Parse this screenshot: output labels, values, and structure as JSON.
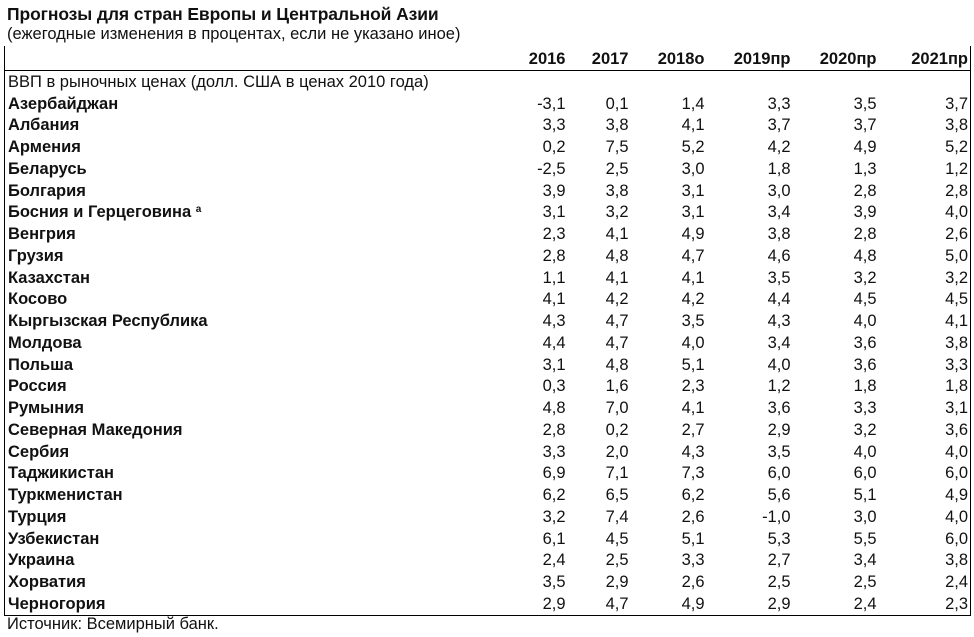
{
  "title": "Прогнозы для стран Европы и Центральной Азии",
  "subtitle": "(ежегодные изменения в процентах, если не указано иное)",
  "columns": [
    "2016",
    "2017",
    "2018о",
    "2019пр",
    "2020пр",
    "2021пр"
  ],
  "section_label": "ВВП в рыночных ценах (долл. США в ценах 2010 года)",
  "rows": [
    {
      "name": "Азербайджан",
      "sup": "",
      "values": [
        "-3,1",
        "0,1",
        "1,4",
        "3,3",
        "3,5",
        "3,7"
      ]
    },
    {
      "name": "Албания",
      "sup": "",
      "values": [
        "3,3",
        "3,8",
        "4,1",
        "3,7",
        "3,7",
        "3,8"
      ]
    },
    {
      "name": "Армения",
      "sup": "",
      "values": [
        "0,2",
        "7,5",
        "5,2",
        "4,2",
        "4,9",
        "5,2"
      ]
    },
    {
      "name": "Беларусь",
      "sup": "",
      "values": [
        "-2,5",
        "2,5",
        "3,0",
        "1,8",
        "1,3",
        "1,2"
      ]
    },
    {
      "name": "Болгария",
      "sup": "",
      "values": [
        "3,9",
        "3,8",
        "3,1",
        "3,0",
        "2,8",
        "2,8"
      ]
    },
    {
      "name": "Босния и Герцеговина",
      "sup": "а",
      "values": [
        "3,1",
        "3,2",
        "3,1",
        "3,4",
        "3,9",
        "4,0"
      ]
    },
    {
      "name": "Венгрия",
      "sup": "",
      "values": [
        "2,3",
        "4,1",
        "4,9",
        "3,8",
        "2,8",
        "2,6"
      ]
    },
    {
      "name": "Грузия",
      "sup": "",
      "values": [
        "2,8",
        "4,8",
        "4,7",
        "4,6",
        "4,8",
        "5,0"
      ]
    },
    {
      "name": "Казахстан",
      "sup": "",
      "values": [
        "1,1",
        "4,1",
        "4,1",
        "3,5",
        "3,2",
        "3,2"
      ]
    },
    {
      "name": "Косово",
      "sup": "",
      "values": [
        "4,1",
        "4,2",
        "4,2",
        "4,4",
        "4,5",
        "4,5"
      ]
    },
    {
      "name": "Кыргызская Республика",
      "sup": "",
      "values": [
        "4,3",
        "4,7",
        "3,5",
        "4,3",
        "4,0",
        "4,1"
      ]
    },
    {
      "name": "Молдова",
      "sup": "",
      "values": [
        "4,4",
        "4,7",
        "4,0",
        "3,4",
        "3,6",
        "3,8"
      ]
    },
    {
      "name": "Польша",
      "sup": "",
      "values": [
        "3,1",
        "4,8",
        "5,1",
        "4,0",
        "3,6",
        "3,3"
      ]
    },
    {
      "name": "Россия",
      "sup": "",
      "values": [
        "0,3",
        "1,6",
        "2,3",
        "1,2",
        "1,8",
        "1,8"
      ]
    },
    {
      "name": "Румыния",
      "sup": "",
      "values": [
        "4,8",
        "7,0",
        "4,1",
        "3,6",
        "3,3",
        "3,1"
      ]
    },
    {
      "name": "Северная Македония",
      "sup": "",
      "values": [
        "2,8",
        "0,2",
        "2,7",
        "2,9",
        "3,2",
        "3,6"
      ]
    },
    {
      "name": "Сербия",
      "sup": "",
      "values": [
        "3,3",
        "2,0",
        "4,3",
        "3,5",
        "4,0",
        "4,0"
      ]
    },
    {
      "name": "Таджикистан",
      "sup": "",
      "values": [
        "6,9",
        "7,1",
        "7,3",
        "6,0",
        "6,0",
        "6,0"
      ]
    },
    {
      "name": "Туркменистан",
      "sup": "",
      "values": [
        "6,2",
        "6,5",
        "6,2",
        "5,6",
        "5,1",
        "4,9"
      ]
    },
    {
      "name": "Турция",
      "sup": "",
      "values": [
        "3,2",
        "7,4",
        "2,6",
        "-1,0",
        "3,0",
        "4,0"
      ]
    },
    {
      "name": "Узбекистан",
      "sup": "",
      "values": [
        "6,1",
        "4,5",
        "5,1",
        "5,3",
        "5,5",
        "6,0"
      ]
    },
    {
      "name": "Украина",
      "sup": "",
      "values": [
        "2,4",
        "2,5",
        "3,3",
        "2,7",
        "3,4",
        "3,8"
      ]
    },
    {
      "name": "Хорватия",
      "sup": "",
      "values": [
        "3,5",
        "2,9",
        "2,6",
        "2,5",
        "2,5",
        "2,4"
      ]
    },
    {
      "name": "Черногория",
      "sup": "",
      "values": [
        "2,9",
        "4,7",
        "4,9",
        "2,9",
        "2,4",
        "2,3"
      ]
    }
  ],
  "source": "Источник: Всемирный банк."
}
